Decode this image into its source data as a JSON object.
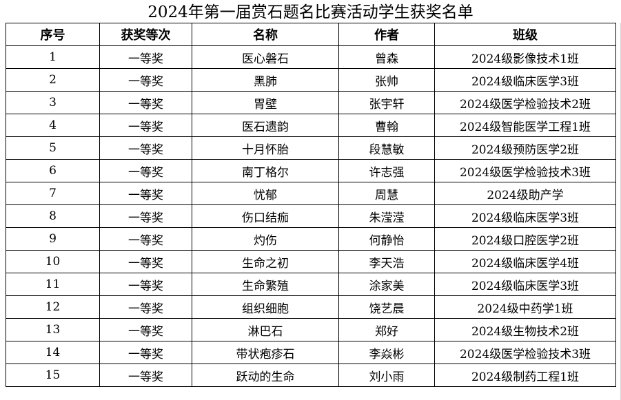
{
  "title": "2024年第一届赏石题名比赛活动学生获奖名单",
  "headers": [
    "序号",
    "获奖等次",
    "名称",
    "作者",
    "班级"
  ],
  "rows": [
    [
      "1",
      "一等奖",
      "医心磐石",
      "曾森",
      "2024级影像技术1班"
    ],
    [
      "2",
      "一等奖",
      "黑肺",
      "张帅",
      "2024级临床医学3班"
    ],
    [
      "3",
      "一等奖",
      "胃壁",
      "张宇轩",
      "2024级医学检验技术2班"
    ],
    [
      "4",
      "一等奖",
      "医石遗韵",
      "曹翰",
      "2024级智能医学工程1班"
    ],
    [
      "5",
      "一等奖",
      "十月怀胎",
      "段慧敏",
      "2024级预防医学2班"
    ],
    [
      "6",
      "一等奖",
      "南丁格尔",
      "许志强",
      "2024级医学检验技术3班"
    ],
    [
      "7",
      "一等奖",
      "忧郁",
      "周慧",
      "2024级助产学"
    ],
    [
      "8",
      "一等奖",
      "伤口结痂",
      "朱滢滢",
      "2024级临床医学3班"
    ],
    [
      "9",
      "一等奖",
      "灼伤",
      "何静怡",
      "2024级口腔医学2班"
    ],
    [
      "10",
      "一等奖",
      "生命之初",
      "李天浩",
      "2024级临床医学4班"
    ],
    [
      "11",
      "一等奖",
      "生命繁殖",
      "涂家美",
      "2024级临床医学3班"
    ],
    [
      "12",
      "一等奖",
      "组织细胞",
      "饶艺晨",
      "2024级中药学1班"
    ],
    [
      "13",
      "一等奖",
      "淋巴石",
      "郑好",
      "2024级生物技术2班"
    ],
    [
      "14",
      "一等奖",
      "带状疱疹石",
      "李焱彬",
      "2024级医学检验技术3班"
    ],
    [
      "15",
      "一等奖",
      "跃动的生命",
      "刘小雨",
      "2024级制药工程1班"
    ]
  ]
}
